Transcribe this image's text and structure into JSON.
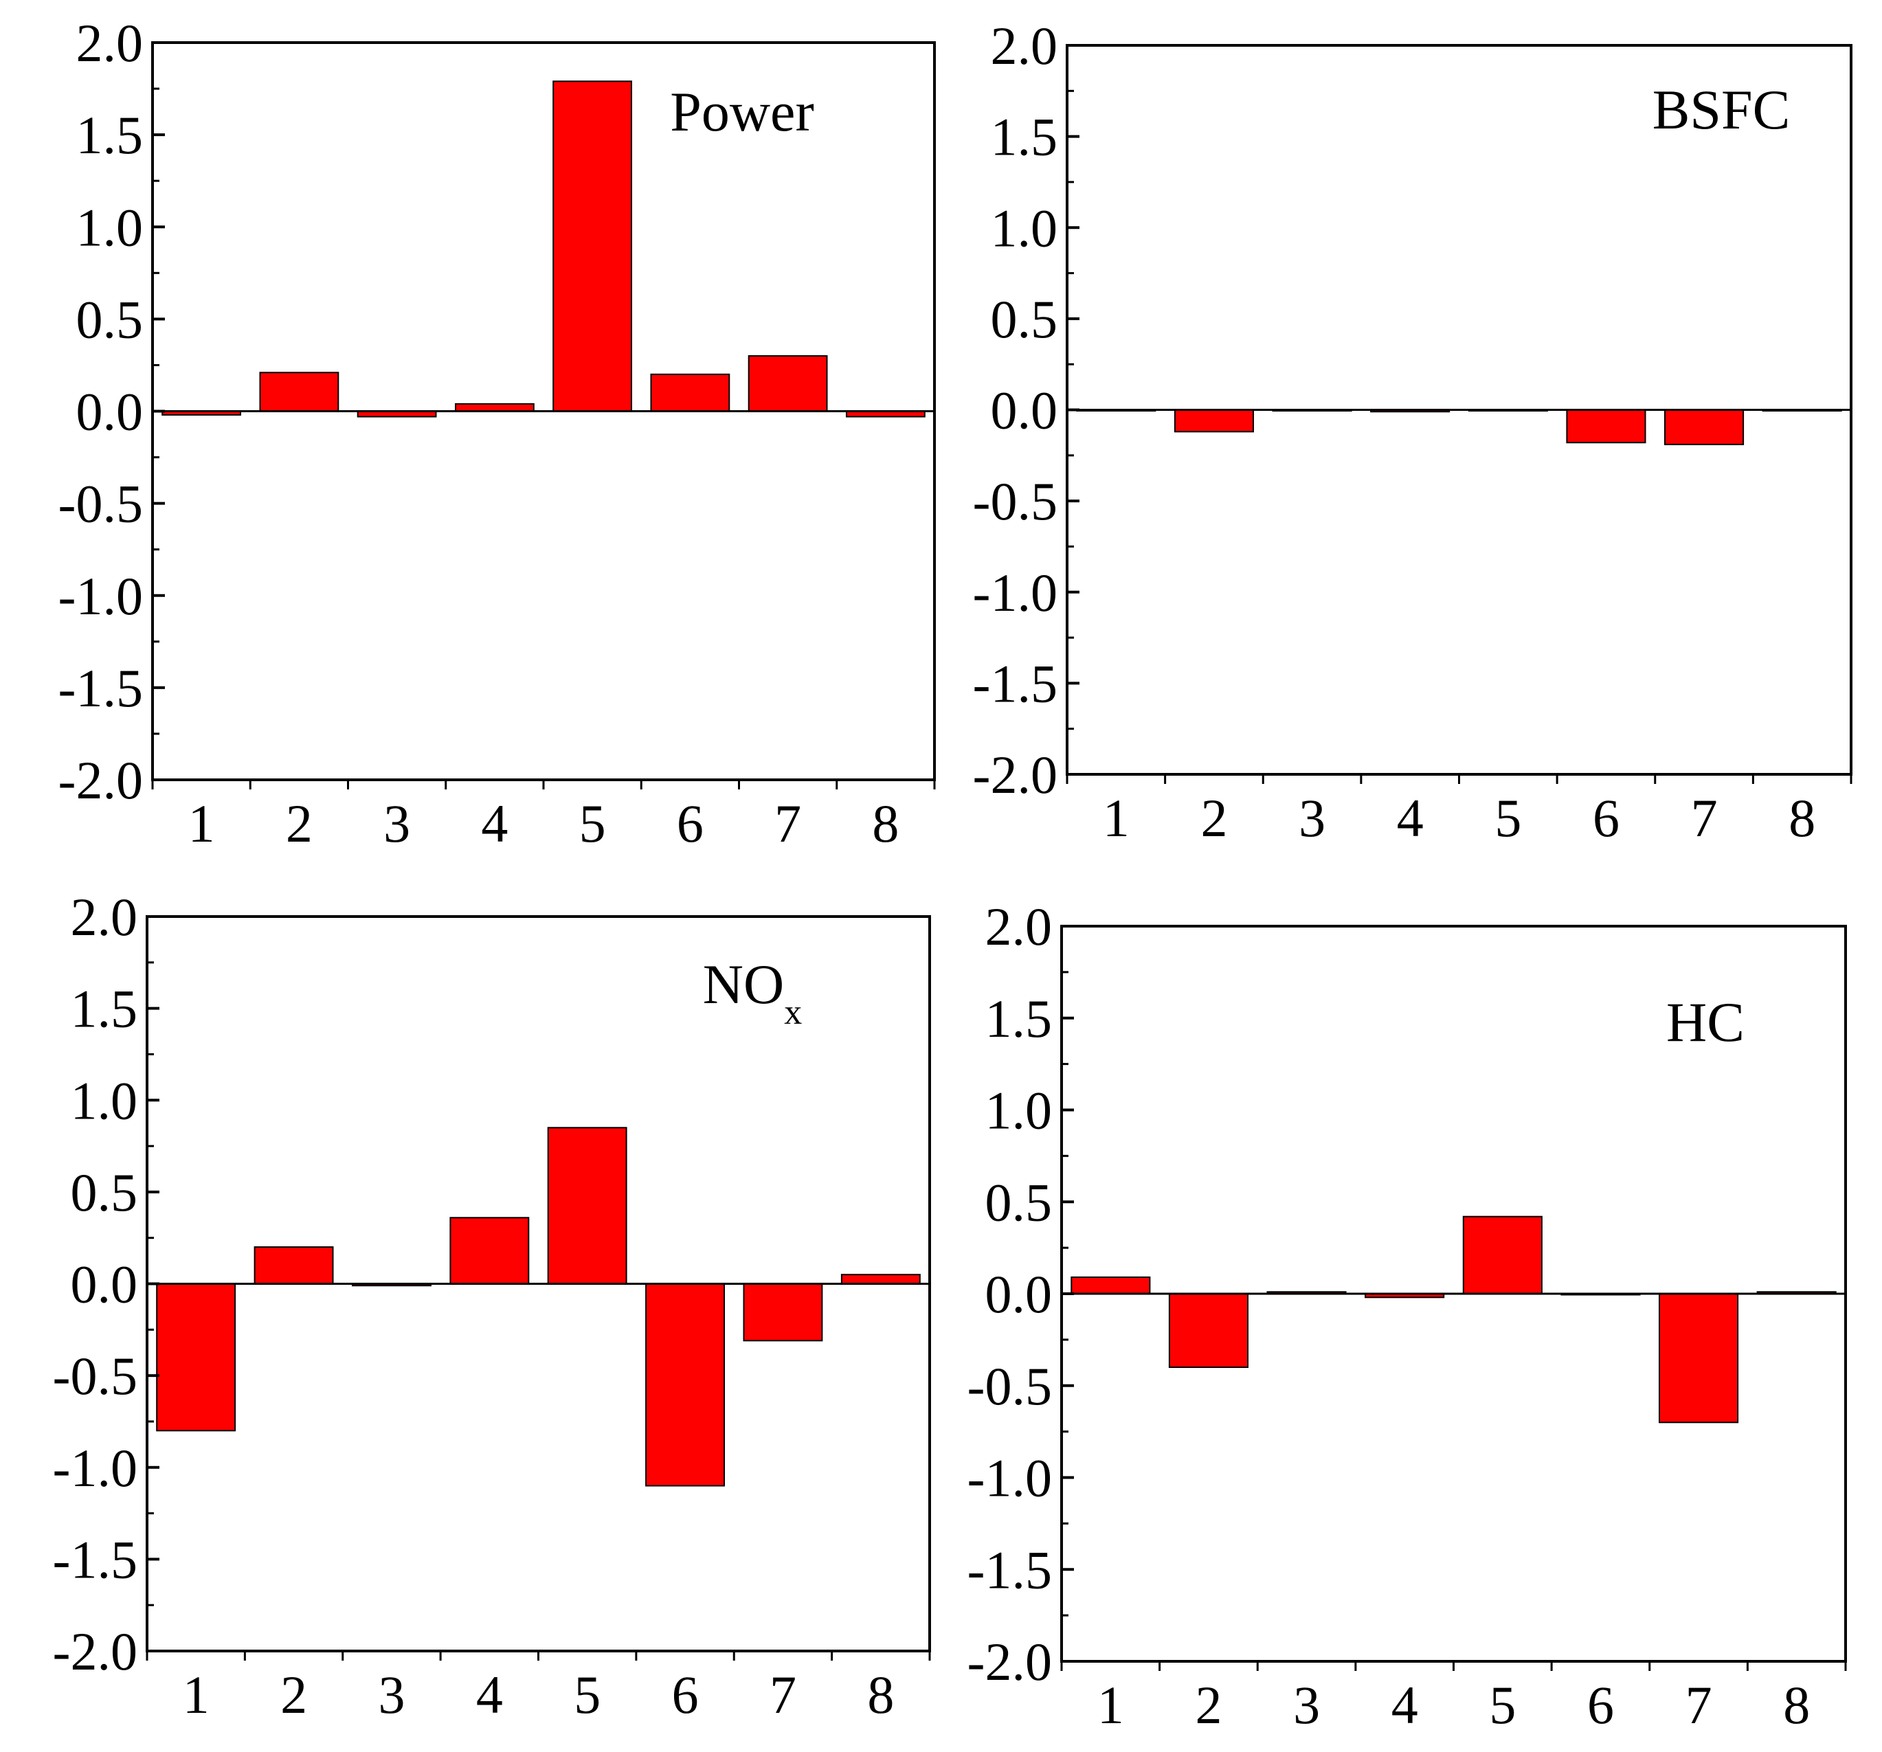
{
  "chart_data": [
    {
      "type": "bar",
      "title": "Power",
      "title_subscript": "",
      "categories": [
        "1",
        "2",
        "3",
        "4",
        "5",
        "6",
        "7",
        "8"
      ],
      "values": [
        -0.02,
        0.21,
        -0.03,
        0.04,
        1.79,
        0.2,
        0.3,
        -0.03
      ],
      "ylim": [
        -2.0,
        2.0
      ],
      "yticks": [
        "2.0",
        "1.5",
        "1.0",
        "0.5",
        "0.0",
        "-0.5",
        "-1.0",
        "-1.5",
        "-2.0"
      ],
      "xlabel": "",
      "ylabel": "",
      "bar_color": "#ff0000",
      "grid": false
    },
    {
      "type": "bar",
      "title": "BSFC",
      "title_subscript": "",
      "categories": [
        "1",
        "2",
        "3",
        "4",
        "5",
        "6",
        "7",
        "8"
      ],
      "values": [
        0.0,
        -0.12,
        0.0,
        -0.01,
        0.0,
        -0.18,
        -0.19,
        0.0
      ],
      "ylim": [
        -2.0,
        2.0
      ],
      "yticks": [
        "2.0",
        "1.5",
        "1.0",
        "0.5",
        "0.0",
        "-0.5",
        "-1.0",
        "-1.5",
        "-2.0"
      ],
      "xlabel": "",
      "ylabel": "",
      "bar_color": "#ff0000",
      "grid": false
    },
    {
      "type": "bar",
      "title": "NO",
      "title_subscript": "x",
      "categories": [
        "1",
        "2",
        "3",
        "4",
        "5",
        "6",
        "7",
        "8"
      ],
      "values": [
        -0.8,
        0.2,
        -0.01,
        0.36,
        0.85,
        -1.1,
        -0.31,
        0.05
      ],
      "ylim": [
        -2.0,
        2.0
      ],
      "yticks": [
        "2.0",
        "1.5",
        "1.0",
        "0.5",
        "0.0",
        "-0.5",
        "-1.0",
        "-1.5",
        "-2.0"
      ],
      "xlabel": "",
      "ylabel": "",
      "bar_color": "#ff0000",
      "grid": false
    },
    {
      "type": "bar",
      "title": "HC",
      "title_subscript": "",
      "categories": [
        "1",
        "2",
        "3",
        "4",
        "5",
        "6",
        "7",
        "8"
      ],
      "values": [
        0.09,
        -0.4,
        0.01,
        -0.02,
        0.42,
        0.0,
        -0.7,
        0.01
      ],
      "ylim": [
        -2.0,
        2.0
      ],
      "yticks": [
        "2.0",
        "1.5",
        "1.0",
        "0.5",
        "0.0",
        "-0.5",
        "-1.0",
        "-1.5",
        "-2.0"
      ],
      "xlabel": "",
      "ylabel": "",
      "bar_color": "#ff0000",
      "grid": false
    }
  ]
}
